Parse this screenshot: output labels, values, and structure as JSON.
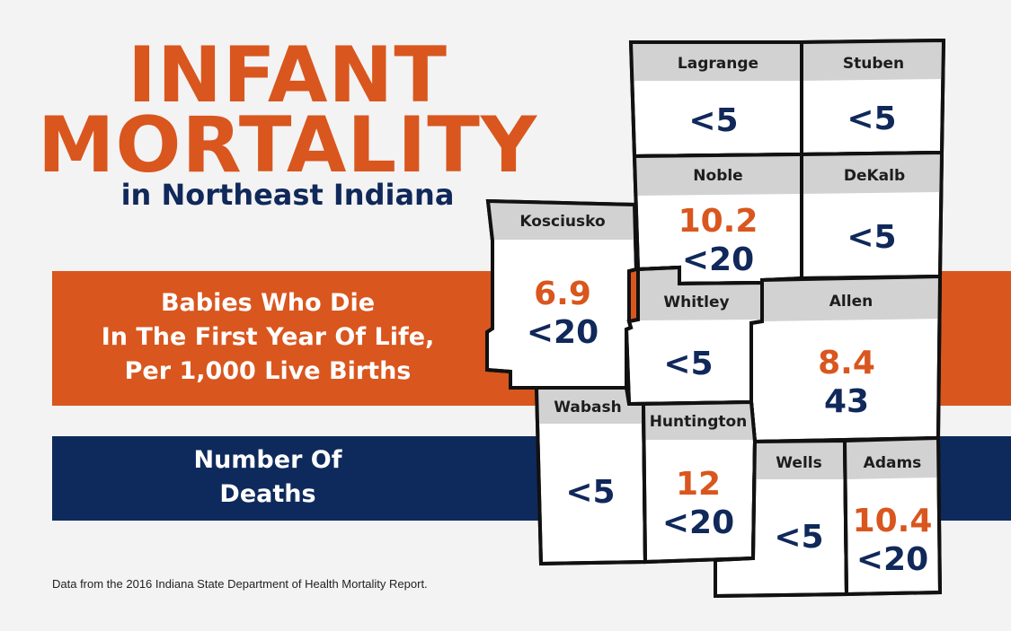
{
  "title": {
    "line1": "INFANT",
    "line2": "MORTALITY",
    "subtitle": "in Northeast Indiana"
  },
  "legend": {
    "rate_label": [
      "Babies Who Die",
      "In The First Year Of Life,",
      "Per 1,000 Live Births"
    ],
    "deaths_label": [
      "Number Of",
      "Deaths"
    ]
  },
  "source": "Data from the 2016 Indiana State Department of Health Mortality Report.",
  "colors": {
    "rate": "#d9561e",
    "deaths": "#0e2a5c",
    "header": "#d2d2d2",
    "cell": "#ffffff"
  },
  "counties": {
    "lagrange": {
      "name": "Lagrange",
      "rate": "",
      "deaths": "<5"
    },
    "stuben": {
      "name": "Stuben",
      "rate": "",
      "deaths": "<5"
    },
    "noble": {
      "name": "Noble",
      "rate": "10.2",
      "deaths": "<20"
    },
    "dekalb": {
      "name": "DeKalb",
      "rate": "",
      "deaths": "<5"
    },
    "kosciusko": {
      "name": "Kosciusko",
      "rate": "6.9",
      "deaths": "<20"
    },
    "whitley": {
      "name": "Whitley",
      "rate": "",
      "deaths": "<5"
    },
    "allen": {
      "name": "Allen",
      "rate": "8.4",
      "deaths": "43"
    },
    "wabash": {
      "name": "Wabash",
      "rate": "",
      "deaths": "<5"
    },
    "huntington": {
      "name": "Huntington",
      "rate": "12",
      "deaths": "<20"
    },
    "wells": {
      "name": "Wells",
      "rate": "",
      "deaths": "<5"
    },
    "adams": {
      "name": "Adams",
      "rate": "10.4",
      "deaths": "<20"
    }
  }
}
